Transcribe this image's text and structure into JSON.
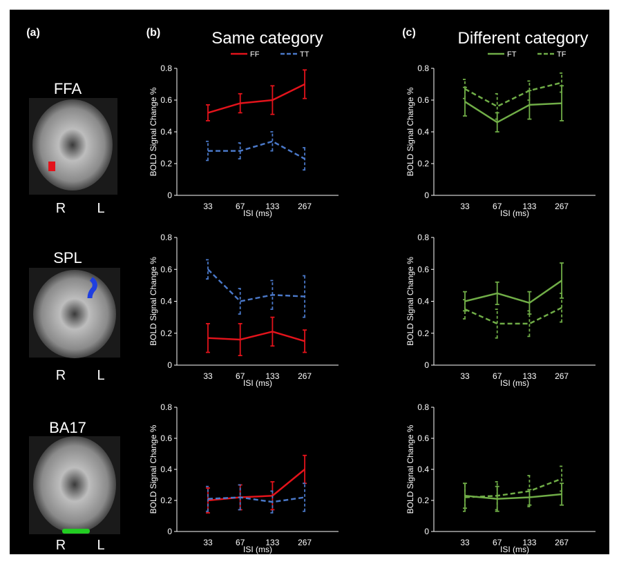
{
  "figure": {
    "panel_labels": [
      "(a)",
      "(b)",
      "(c)"
    ],
    "column_titles": [
      "Same category",
      "Different category"
    ],
    "regions": [
      {
        "name": "FFA",
        "left": "R",
        "right": "L"
      },
      {
        "name": "SPL",
        "left": "R",
        "right": "L"
      },
      {
        "name": "BA17",
        "left": "R",
        "right": "L"
      }
    ]
  },
  "chart_data": [
    {
      "type": "line",
      "xlabel": "ISI (ms)",
      "ylabel": "BOLD Signal Change %",
      "categories": [
        "33",
        "67",
        "133",
        "267"
      ],
      "ylim": [
        0,
        0.8
      ],
      "yticks": [
        0,
        0.2,
        0.4,
        0.6,
        0.8
      ],
      "series": [
        {
          "name": "FF",
          "color": "#e3131b",
          "dash": false,
          "values": [
            0.52,
            0.58,
            0.6,
            0.7
          ],
          "errors": [
            0.05,
            0.06,
            0.09,
            0.09
          ]
        },
        {
          "name": "TT",
          "color": "#4a78c8",
          "dash": true,
          "values": [
            0.28,
            0.28,
            0.34,
            0.23
          ],
          "errors": [
            0.06,
            0.05,
            0.06,
            0.07
          ]
        }
      ]
    },
    {
      "type": "line",
      "xlabel": "ISI (ms)",
      "ylabel": "BOLD Signal Change %",
      "categories": [
        "33",
        "67",
        "133",
        "267"
      ],
      "ylim": [
        0,
        0.8
      ],
      "yticks": [
        0,
        0.2,
        0.4,
        0.6,
        0.8
      ],
      "series": [
        {
          "name": "FT",
          "color": "#70ad47",
          "dash": false,
          "values": [
            0.59,
            0.46,
            0.57,
            0.58
          ],
          "errors": [
            0.09,
            0.06,
            0.09,
            0.11
          ]
        },
        {
          "name": "TF",
          "color": "#70ad47",
          "dash": true,
          "values": [
            0.67,
            0.56,
            0.66,
            0.71
          ],
          "errors": [
            0.06,
            0.08,
            0.06,
            0.06
          ]
        }
      ]
    },
    {
      "type": "line",
      "xlabel": "ISI (ms)",
      "ylabel": "BOLD Signal Change %",
      "categories": [
        "33",
        "67",
        "133",
        "267"
      ],
      "ylim": [
        0,
        0.8
      ],
      "yticks": [
        0,
        0.2,
        0.4,
        0.6,
        0.8
      ],
      "series": [
        {
          "color": "#e3131b",
          "dash": false,
          "values": [
            0.17,
            0.16,
            0.21,
            0.15
          ],
          "errors": [
            0.09,
            0.1,
            0.09,
            0.07
          ]
        },
        {
          "color": "#4a78c8",
          "dash": true,
          "values": [
            0.6,
            0.4,
            0.44,
            0.43
          ],
          "errors": [
            0.06,
            0.08,
            0.09,
            0.13
          ]
        }
      ]
    },
    {
      "type": "line",
      "xlabel": "ISI (ms)",
      "ylabel": "BOLD Signal Change %",
      "categories": [
        "33",
        "67",
        "133",
        "267"
      ],
      "ylim": [
        0,
        0.8
      ],
      "yticks": [
        0,
        0.2,
        0.4,
        0.6,
        0.8
      ],
      "series": [
        {
          "color": "#70ad47",
          "dash": false,
          "values": [
            0.4,
            0.45,
            0.39,
            0.53
          ],
          "errors": [
            0.06,
            0.07,
            0.07,
            0.11
          ]
        },
        {
          "color": "#70ad47",
          "dash": true,
          "values": [
            0.35,
            0.26,
            0.26,
            0.36
          ],
          "errors": [
            0.06,
            0.09,
            0.08,
            0.09
          ]
        }
      ]
    },
    {
      "type": "line",
      "xlabel": "ISI (ms)",
      "ylabel": "BOLD Signal Change %",
      "categories": [
        "33",
        "67",
        "133",
        "267"
      ],
      "ylim": [
        0,
        0.8
      ],
      "yticks": [
        0,
        0.2,
        0.4,
        0.6,
        0.8
      ],
      "series": [
        {
          "color": "#e3131b",
          "dash": false,
          "values": [
            0.2,
            0.22,
            0.23,
            0.4
          ],
          "errors": [
            0.08,
            0.08,
            0.09,
            0.09
          ]
        },
        {
          "color": "#4a78c8",
          "dash": true,
          "values": [
            0.21,
            0.22,
            0.19,
            0.22
          ],
          "errors": [
            0.08,
            0.08,
            0.07,
            0.09
          ]
        }
      ]
    },
    {
      "type": "line",
      "xlabel": "ISI (ms)",
      "ylabel": "BOLD Signal Change %",
      "categories": [
        "33",
        "67",
        "133",
        "267"
      ],
      "ylim": [
        0,
        0.8
      ],
      "yticks": [
        0,
        0.2,
        0.4,
        0.6,
        0.8
      ],
      "series": [
        {
          "color": "#70ad47",
          "dash": false,
          "values": [
            0.23,
            0.21,
            0.22,
            0.24
          ],
          "errors": [
            0.08,
            0.08,
            0.05,
            0.07
          ]
        },
        {
          "color": "#70ad47",
          "dash": true,
          "values": [
            0.22,
            0.23,
            0.26,
            0.34
          ],
          "errors": [
            0.09,
            0.09,
            0.1,
            0.08
          ]
        }
      ]
    }
  ]
}
